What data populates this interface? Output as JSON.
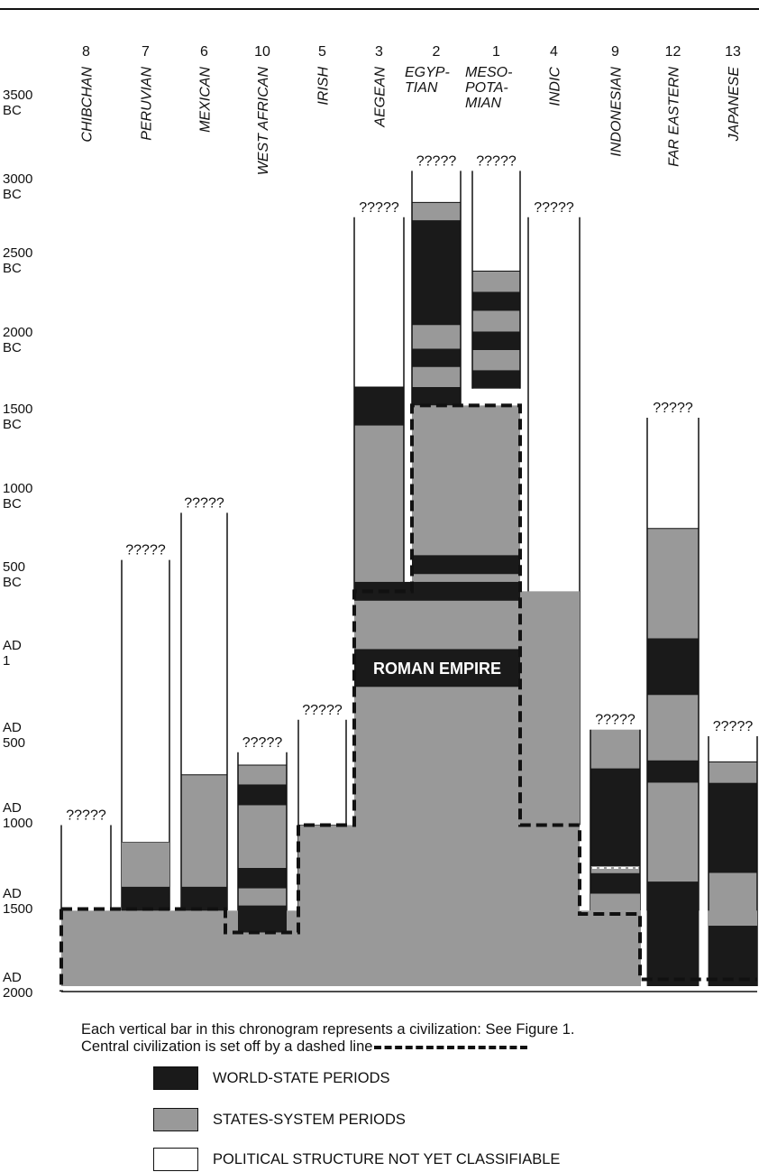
{
  "colors": {
    "world_state": "#1a1a1a",
    "states_system": "#999999",
    "unclassified": "#ffffff",
    "line": "#111111"
  },
  "time_axis": [
    {
      "line1": "3500",
      "line2": "BC",
      "year": -3500
    },
    {
      "line1": "3000",
      "line2": "BC",
      "year": -3000
    },
    {
      "line1": "2500",
      "line2": "BC",
      "year": -2500
    },
    {
      "line1": "2000",
      "line2": "BC",
      "year": -2000
    },
    {
      "line1": "1500",
      "line2": "BC",
      "year": -1500
    },
    {
      "line1": "1000",
      "line2": "BC",
      "year": -1000
    },
    {
      "line1": "500",
      "line2": "BC",
      "year": -500
    },
    {
      "line1": "AD",
      "line2": "1",
      "year": 1
    },
    {
      "line1": "AD",
      "line2": "500",
      "year": 500
    },
    {
      "line1": "AD",
      "line2": "1000",
      "year": 1000
    },
    {
      "line1": "AD",
      "line2": "1500",
      "year": 1500
    },
    {
      "line1": "AD",
      "line2": "2000",
      "year": 2000
    }
  ],
  "unknown_mark": "?????",
  "civilizations": [
    {
      "number": "8",
      "name": "CHIBCHAN",
      "start": 1050,
      "segments": [
        {
          "from": 1050,
          "to": 1550,
          "kind": "unclassified"
        }
      ]
    },
    {
      "number": "7",
      "name": "PERUVIAN",
      "start": -600,
      "segments": [
        {
          "from": -600,
          "to": 1150,
          "kind": "unclassified"
        },
        {
          "from": 1150,
          "to": 1410,
          "kind": "states_system"
        },
        {
          "from": 1410,
          "to": 1550,
          "kind": "world_state"
        }
      ]
    },
    {
      "number": "6",
      "name": "MEXICAN",
      "start": -900,
      "segments": [
        {
          "from": -900,
          "to": 740,
          "kind": "unclassified"
        },
        {
          "from": 740,
          "to": 1410,
          "kind": "states_system"
        },
        {
          "from": 1410,
          "to": 1550,
          "kind": "world_state"
        }
      ]
    },
    {
      "number": "10",
      "name": "WEST AFRICAN",
      "start": 600,
      "segments": [
        {
          "from": 600,
          "to": 680,
          "kind": "unclassified"
        },
        {
          "from": 680,
          "to": 800,
          "kind": "states_system"
        },
        {
          "from": 800,
          "to": 930,
          "kind": "world_state"
        },
        {
          "from": 930,
          "to": 1300,
          "kind": "states_system"
        },
        {
          "from": 1300,
          "to": 1420,
          "kind": "world_state"
        },
        {
          "from": 1420,
          "to": 1520,
          "kind": "states_system"
        },
        {
          "from": 1520,
          "to": 1680,
          "kind": "world_state"
        }
      ]
    },
    {
      "number": "5",
      "name": "IRISH",
      "start": 400,
      "segments": [
        {
          "from": 400,
          "to": 1050,
          "kind": "unclassified"
        },
        {
          "from": 1050,
          "to": 2000,
          "kind": "states_system"
        }
      ]
    },
    {
      "number": "3",
      "name": "AEGEAN",
      "start": -2800,
      "segments": [
        {
          "from": -2800,
          "to": -1700,
          "kind": "unclassified"
        },
        {
          "from": -1700,
          "to": -1450,
          "kind": "world_state"
        },
        {
          "from": -1450,
          "to": -400,
          "kind": "states_system"
        }
      ]
    },
    {
      "number": "2",
      "name": "EGYP-",
      "name2": "TIAN",
      "start": -3100,
      "segments": [
        {
          "from": -3100,
          "to": -2900,
          "kind": "unclassified"
        },
        {
          "from": -2900,
          "to": -2780,
          "kind": "states_system"
        },
        {
          "from": -2780,
          "to": -2100,
          "kind": "world_state"
        },
        {
          "from": -2100,
          "to": -1950,
          "kind": "states_system"
        },
        {
          "from": -1950,
          "to": -1830,
          "kind": "world_state"
        },
        {
          "from": -1830,
          "to": -1700,
          "kind": "states_system"
        },
        {
          "from": -1700,
          "to": -1580,
          "kind": "world_state"
        }
      ]
    },
    {
      "number": "1",
      "name": "MESO-",
      "name2": "POTA-",
      "name3": "MIAN",
      "start": -3100,
      "segments": [
        {
          "from": -3100,
          "to": -2440,
          "kind": "unclassified"
        },
        {
          "from": -2440,
          "to": -2310,
          "kind": "states_system"
        },
        {
          "from": -2310,
          "to": -2190,
          "kind": "world_state"
        },
        {
          "from": -2190,
          "to": -2060,
          "kind": "states_system"
        },
        {
          "from": -2060,
          "to": -1940,
          "kind": "world_state"
        },
        {
          "from": -1940,
          "to": -1810,
          "kind": "states_system"
        },
        {
          "from": -1810,
          "to": -1690,
          "kind": "world_state"
        }
      ]
    },
    {
      "number": "4",
      "name": "INDIC",
      "start": -2800,
      "segments": [
        {
          "from": -2800,
          "to": -300,
          "kind": "unclassified"
        },
        {
          "from": -300,
          "to": -150,
          "kind": "states_system"
        },
        {
          "from": -150,
          "to": -30,
          "kind": "world_state"
        },
        {
          "from": -30,
          "to": 1050,
          "kind": "states_system"
        }
      ]
    },
    {
      "number": "9",
      "name": "INDONESIAN",
      "start": 460,
      "segments": [
        {
          "from": 460,
          "to": 700,
          "kind": "states_system"
        },
        {
          "from": 700,
          "to": 1290,
          "kind": "world_state"
        },
        {
          "from": 1290,
          "to": 1330,
          "kind": "states_system"
        },
        {
          "from": 1330,
          "to": 1450,
          "kind": "world_state"
        },
        {
          "from": 1450,
          "to": 1550,
          "kind": "states_system"
        }
      ]
    },
    {
      "number": "12",
      "name": "FAR EASTERN",
      "start": -1500,
      "segments": [
        {
          "from": -1500,
          "to": -800,
          "kind": "unclassified"
        },
        {
          "from": -800,
          "to": -100,
          "kind": "states_system"
        },
        {
          "from": -100,
          "to": 250,
          "kind": "world_state"
        },
        {
          "from": 250,
          "to": 650,
          "kind": "states_system"
        },
        {
          "from": 650,
          "to": 790,
          "kind": "world_state"
        },
        {
          "from": 790,
          "to": 1380,
          "kind": "states_system"
        },
        {
          "from": 1380,
          "to": 2000,
          "kind": "world_state"
        }
      ]
    },
    {
      "number": "13",
      "name": "JAPANESE",
      "start": 500,
      "segments": [
        {
          "from": 500,
          "to": 660,
          "kind": "unclassified"
        },
        {
          "from": 660,
          "to": 790,
          "kind": "states_system"
        },
        {
          "from": 790,
          "to": 1330,
          "kind": "world_state"
        },
        {
          "from": 1330,
          "to": 1640,
          "kind": "states_system"
        },
        {
          "from": 1640,
          "to": 2000,
          "kind": "world_state"
        }
      ]
    }
  ],
  "roman_empire_label": "ROMAN EMPIRE",
  "caption": {
    "line1": "Each vertical bar in this chronogram represents a civilization: See Figure 1.",
    "line2": "Central civilization is set off by a dashed line"
  },
  "legend": {
    "world_state": "WORLD-STATE PERIODS",
    "states_system": "STATES-SYSTEM PERIODS",
    "unclassified": "POLITICAL STRUCTURE NOT YET CLASSIFIABLE"
  }
}
